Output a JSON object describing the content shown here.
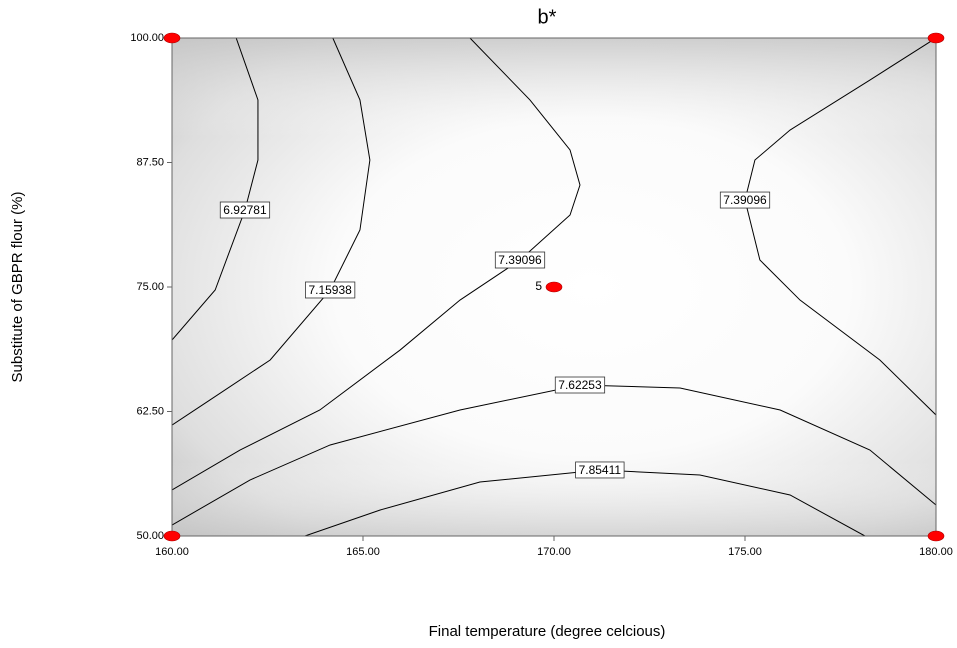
{
  "chart_data": {
    "type": "contour",
    "title": "b*",
    "x_label": "Final temperature (degree celcious)",
    "y_label": "Substitute of GBPR flour (%)",
    "xlim": [
      160,
      180
    ],
    "ylim": [
      50,
      100
    ],
    "xticks": [
      {
        "value": 160,
        "label": "160.00"
      },
      {
        "value": 165,
        "label": "165.00"
      },
      {
        "value": 170,
        "label": "170.00"
      },
      {
        "value": 175,
        "label": "175.00"
      },
      {
        "value": 180,
        "label": "180.00"
      }
    ],
    "yticks": [
      {
        "value": 50,
        "label": "50.00"
      },
      {
        "value": 62.5,
        "label": "62.50"
      },
      {
        "value": 75,
        "label": "75.00"
      },
      {
        "value": 87.5,
        "label": "87.50"
      },
      {
        "value": 100,
        "label": "100.00"
      }
    ],
    "line_color": "#000000",
    "point_color": "#ff0000",
    "contours": [
      {
        "level": 6.92781,
        "x": [
          161.68,
          162.25,
          162.25,
          161.91,
          161.13,
          160
        ],
        "y": [
          100,
          93.78,
          87.75,
          82.73,
          74.7,
          69.68
        ]
      },
      {
        "level": 7.15938,
        "x": [
          164.21,
          164.92,
          165.18,
          164.92,
          164.14,
          162.57,
          160.99,
          160
        ],
        "y": [
          100,
          93.78,
          87.75,
          80.72,
          74.7,
          67.67,
          63.65,
          61.14
        ]
      },
      {
        "level": 7.39096,
        "x": [
          167.8,
          169.37,
          170.42,
          170.68,
          170.42,
          169.11,
          167.54,
          165.97,
          163.87,
          161.78,
          160
        ],
        "y": [
          100,
          93.78,
          88.76,
          85.24,
          82.23,
          77.71,
          73.69,
          68.67,
          62.65,
          58.63,
          54.62
        ]
      },
      {
        "level": 7.39096,
        "x": [
          180,
          178.27,
          176.18,
          175.26,
          175.0,
          175.39,
          176.44,
          178.53,
          180
        ],
        "y": [
          100,
          95.78,
          90.76,
          87.75,
          83.73,
          77.71,
          73.69,
          67.67,
          62.15
        ]
      },
      {
        "level": 7.62253,
        "x": [
          160,
          162.04,
          164.14,
          167.54,
          170.68,
          173.3,
          175.92,
          178.27,
          180
        ],
        "y": [
          51.1,
          55.62,
          59.14,
          62.65,
          65.16,
          64.86,
          62.65,
          58.63,
          53.11
        ]
      },
      {
        "level": 7.85411,
        "x": [
          163.48,
          165.45,
          168.06,
          171.2,
          173.82,
          176.18,
          178.14
        ],
        "y": [
          50,
          52.61,
          55.42,
          56.63,
          56.12,
          54.12,
          50
        ]
      }
    ],
    "design_points": {
      "x": [
        160,
        180,
        160,
        180,
        170
      ],
      "y": [
        100,
        100,
        50,
        50,
        75
      ]
    },
    "center_replicates": 5
  }
}
